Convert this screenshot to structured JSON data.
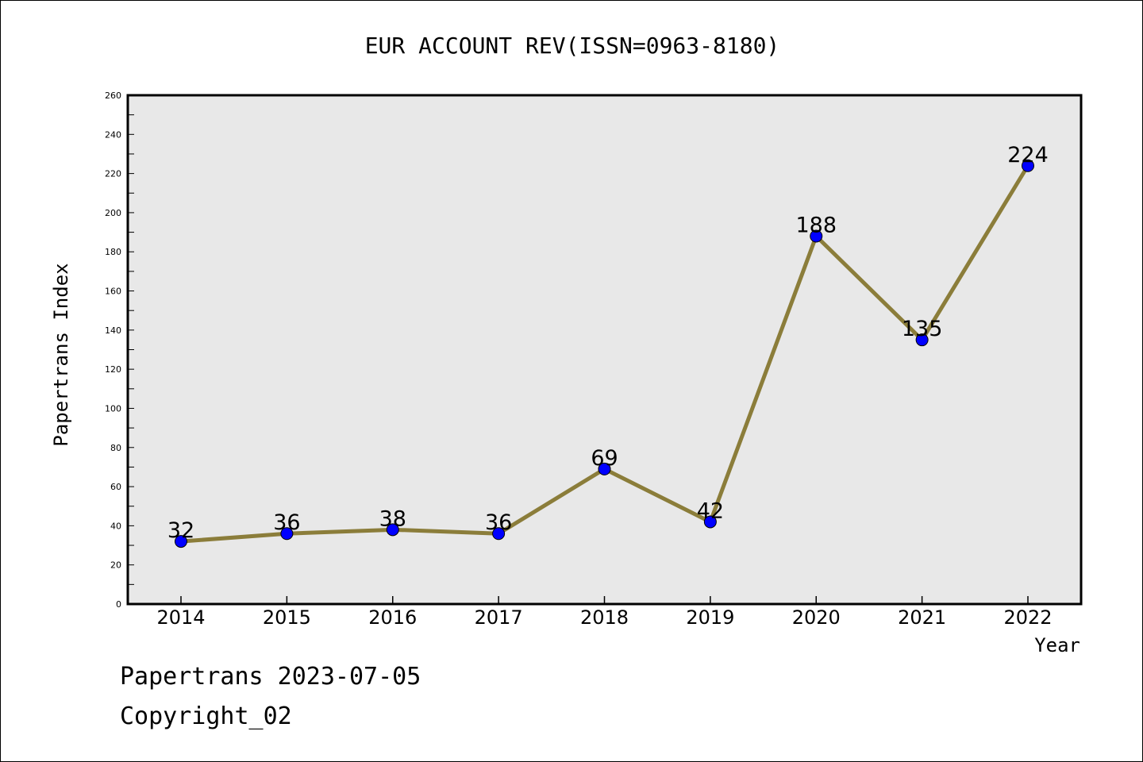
{
  "chart_data": {
    "type": "line",
    "title": "EUR ACCOUNT REV(ISSN=0963-8180)",
    "xlabel": "Year",
    "ylabel": "Papertrans Index",
    "categories": [
      "2014",
      "2015",
      "2016",
      "2017",
      "2018",
      "2019",
      "2020",
      "2021",
      "2022"
    ],
    "values": [
      32,
      36,
      38,
      36,
      69,
      42,
      188,
      135,
      224
    ],
    "data_labels": [
      "32",
      "36",
      "38",
      "36",
      "69",
      "42",
      "188",
      "135",
      "224"
    ],
    "ylim": [
      0,
      260
    ],
    "yticks": [
      0,
      20,
      40,
      60,
      80,
      100,
      120,
      140,
      160,
      180,
      200,
      220,
      240,
      260
    ],
    "ytick_labels": [
      "0",
      "20",
      "40",
      "60",
      "80",
      "100",
      "120",
      "140",
      "160",
      "180",
      "200",
      "220",
      "240",
      "260"
    ],
    "grid": false,
    "legend": "none",
    "colors": {
      "line": "#8b7d3a",
      "marker": "#0000ff",
      "plot_background": "#e8e8e8"
    }
  },
  "footer": {
    "line1": "Papertrans 2023-07-05",
    "line2": "Copyright_02"
  }
}
